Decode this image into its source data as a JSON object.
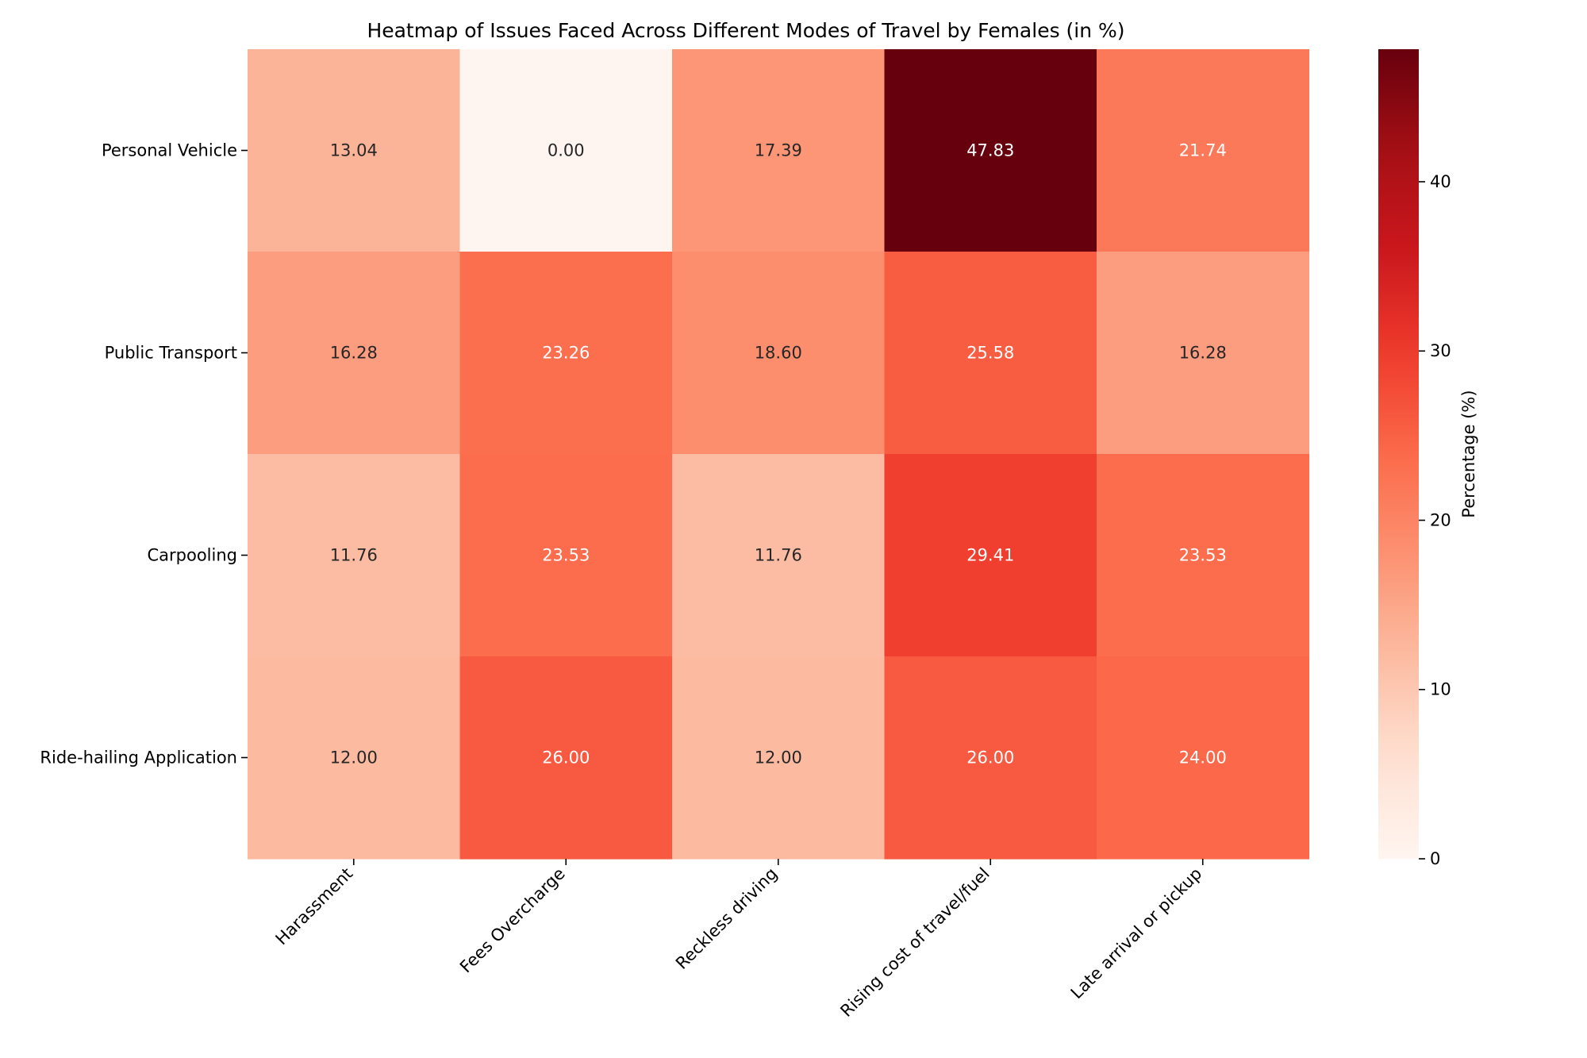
{
  "chart_data": {
    "type": "heatmap",
    "title": "Heatmap of Issues Faced Across Different Modes of Travel by Females (in %)",
    "rows": [
      "Personal Vehicle",
      "Public Transport",
      "Carpooling",
      "Ride-hailing Application"
    ],
    "columns": [
      "Harassment",
      "Fees Overcharge",
      "Reckless driving",
      "Rising cost of travel/fuel",
      "Late arrival or pickup"
    ],
    "values": [
      [
        13.04,
        0.0,
        17.39,
        47.83,
        21.74
      ],
      [
        16.28,
        23.26,
        18.6,
        25.58,
        16.28
      ],
      [
        11.76,
        23.53,
        11.76,
        29.41,
        23.53
      ],
      [
        12.0,
        26.0,
        12.0,
        26.0,
        24.0
      ]
    ],
    "value_format": "2 decimals",
    "colormap": "Reds",
    "color_range": [
      0,
      47.83
    ],
    "colorbar": {
      "label": "Percentage (%)",
      "ticks": [
        0,
        10,
        20,
        30,
        40
      ]
    },
    "colors": {
      "low": "#fff5f0",
      "high": "#67000d"
    }
  }
}
